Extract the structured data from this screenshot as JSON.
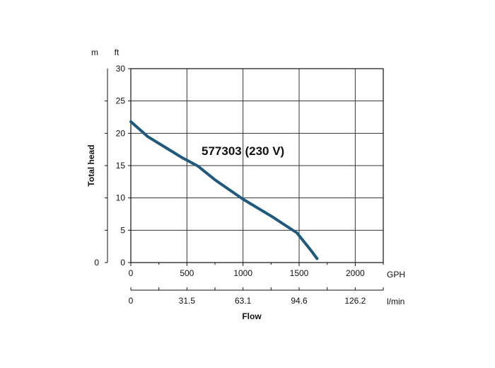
{
  "chart_data": {
    "type": "line",
    "series": [
      {
        "x": [
          0,
          150,
          300,
          450,
          600,
          750,
          1000,
          1250,
          1480,
          1600,
          1660
        ],
        "y": [
          21.8,
          19.5,
          17.9,
          16.3,
          14.9,
          12.8,
          9.8,
          7.2,
          4.6,
          2.0,
          0.6
        ],
        "color": "#1f5a7c"
      }
    ],
    "annotation": "577303 (230 V)",
    "xlabel": "Flow",
    "ylabel": "Total head",
    "xlim": [
      0,
      2250
    ],
    "ylim": [
      0,
      30
    ],
    "x_ticks": [
      0,
      500,
      1000,
      1500,
      2000
    ],
    "x_tick_labels": [
      "0",
      "500",
      "1000",
      "1500",
      "2000"
    ],
    "x_unit": "GPH",
    "x2_ticks": [
      0,
      500,
      1000,
      1500,
      2000
    ],
    "x2_tick_labels": [
      "0",
      "31.5",
      "63.1",
      "94.6",
      "126.2"
    ],
    "x2_unit": "l/min",
    "y_ticks": [
      0,
      5,
      10,
      15,
      20,
      25,
      30
    ],
    "y_tick_labels": [
      "0",
      "5",
      "10",
      "15",
      "20",
      "25",
      "30"
    ],
    "y_unit": "ft",
    "y2_unit": "m",
    "y2_tick_labels": [
      "0"
    ],
    "grid": true
  }
}
